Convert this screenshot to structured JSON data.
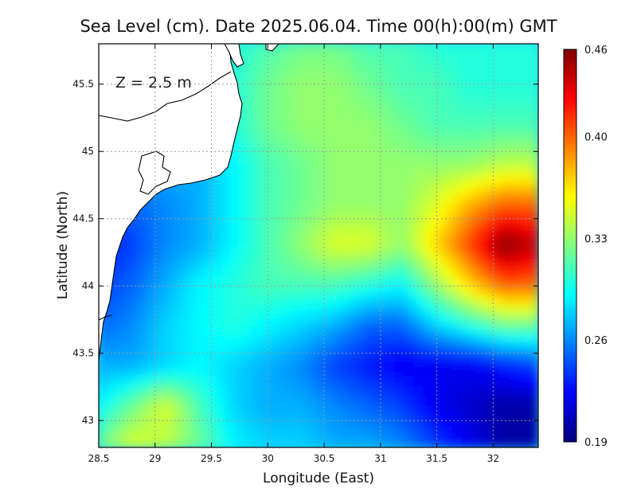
{
  "title": "Sea Level (cm). Date 2025.06.04. Time 00(h):00(m) GMT",
  "annotation": "Z = 2.5 m",
  "colors": {
    "colormap": [
      "#00007f",
      "#0000ff",
      "#0080ff",
      "#00ffff",
      "#80ff80",
      "#ffff00",
      "#ff8000",
      "#ff0000",
      "#7f0000"
    ]
  },
  "chart_data": {
    "type": "heatmap",
    "xlabel": "Longitude (East)",
    "ylabel": "Latitude (North)",
    "xlim": [
      28.5,
      32.4
    ],
    "ylim": [
      42.8,
      45.8
    ],
    "x_ticks": [
      "28.5",
      "29",
      "29.5",
      "30",
      "30.5",
      "31",
      "31.5",
      "32"
    ],
    "x_tick_values": [
      28.5,
      29,
      29.5,
      30,
      30.5,
      31,
      31.5,
      32
    ],
    "y_ticks": [
      "43",
      "43.5",
      "44",
      "44.5",
      "45",
      "45.5"
    ],
    "y_tick_values": [
      43,
      43.5,
      44,
      44.5,
      45,
      45.5
    ],
    "grid": true,
    "colorbar": {
      "labels": [
        "0.19",
        "0.26",
        "0.33",
        "0.40",
        "0.46"
      ],
      "values": [
        0.19,
        0.26,
        0.33,
        0.4,
        0.46
      ],
      "min": 0.19,
      "max": 0.46
    },
    "field": {
      "lon": [
        28.5,
        28.8,
        29.1,
        29.4,
        29.7,
        30.0,
        30.3,
        30.6,
        30.9,
        31.2,
        31.5,
        31.8,
        32.1,
        32.4
      ],
      "lat": [
        45.8,
        45.5,
        45.2,
        44.9,
        44.6,
        44.3,
        44.0,
        43.7,
        43.4,
        43.1,
        42.8
      ],
      "values": [
        [
          0.29,
          0.29,
          0.29,
          0.3,
          0.3,
          0.31,
          0.32,
          0.32,
          0.31,
          0.31,
          0.3,
          0.3,
          0.3,
          0.3
        ],
        [
          0.29,
          0.29,
          0.29,
          0.3,
          0.3,
          0.32,
          0.33,
          0.33,
          0.32,
          0.31,
          0.31,
          0.3,
          0.3,
          0.3
        ],
        [
          0.28,
          0.28,
          0.28,
          0.28,
          0.3,
          0.32,
          0.33,
          0.33,
          0.33,
          0.32,
          0.31,
          0.31,
          0.31,
          0.31
        ],
        [
          0.27,
          0.27,
          0.27,
          0.27,
          0.29,
          0.31,
          0.32,
          0.33,
          0.33,
          0.33,
          0.33,
          0.33,
          0.34,
          0.34
        ],
        [
          0.25,
          0.25,
          0.26,
          0.27,
          0.29,
          0.31,
          0.32,
          0.33,
          0.33,
          0.33,
          0.35,
          0.38,
          0.4,
          0.4
        ],
        [
          0.23,
          0.24,
          0.26,
          0.27,
          0.29,
          0.31,
          0.33,
          0.35,
          0.35,
          0.33,
          0.37,
          0.41,
          0.46,
          0.44
        ],
        [
          0.24,
          0.25,
          0.27,
          0.29,
          0.3,
          0.31,
          0.31,
          0.31,
          0.3,
          0.29,
          0.33,
          0.37,
          0.4,
          0.4
        ],
        [
          0.25,
          0.26,
          0.28,
          0.29,
          0.3,
          0.29,
          0.28,
          0.27,
          0.25,
          0.25,
          0.28,
          0.3,
          0.32,
          0.32
        ],
        [
          0.27,
          0.27,
          0.28,
          0.29,
          0.28,
          0.27,
          0.26,
          0.24,
          0.23,
          0.22,
          0.22,
          0.22,
          0.23,
          0.24
        ],
        [
          0.29,
          0.32,
          0.35,
          0.31,
          0.28,
          0.27,
          0.27,
          0.26,
          0.25,
          0.24,
          0.22,
          0.21,
          0.2,
          0.2
        ],
        [
          0.32,
          0.35,
          0.34,
          0.32,
          0.29,
          0.28,
          0.28,
          0.27,
          0.27,
          0.26,
          0.24,
          0.22,
          0.2,
          0.2
        ]
      ]
    }
  }
}
